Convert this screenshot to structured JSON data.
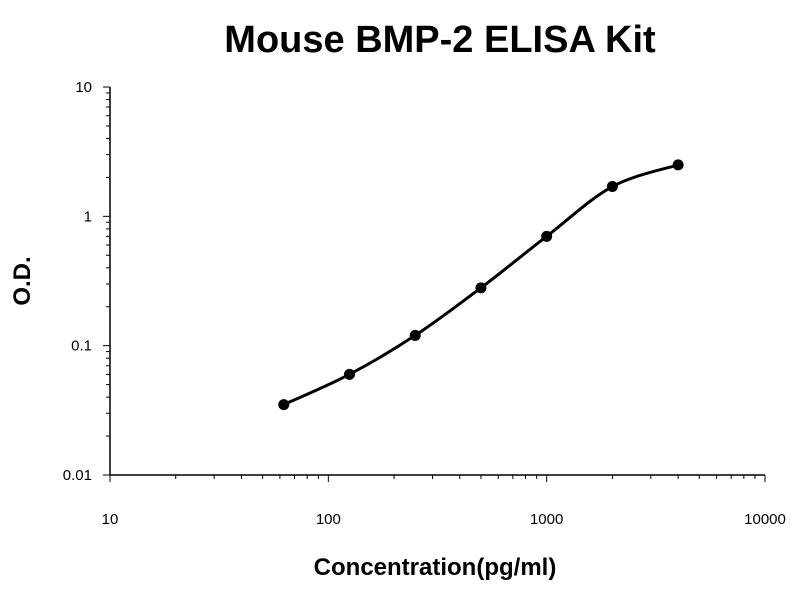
{
  "chart_data": {
    "type": "scatter",
    "title": "Mouse BMP-2 ELISA Kit",
    "xlabel": "Concentration(pg/ml)",
    "ylabel": "O.D.",
    "x_scale": "log",
    "y_scale": "log",
    "xlim": [
      10,
      10000
    ],
    "ylim": [
      0.01,
      10
    ],
    "x_ticks": [
      "10",
      "100",
      "1000",
      "10000"
    ],
    "y_ticks": [
      "10",
      "1",
      "0.1",
      "0.01"
    ],
    "grid": false,
    "legend": "none",
    "series": [
      {
        "points": [
          {
            "x": 62.5,
            "y": 0.035
          },
          {
            "x": 125,
            "y": 0.06
          },
          {
            "x": 250,
            "y": 0.12
          },
          {
            "x": 500,
            "y": 0.28
          },
          {
            "x": 1000,
            "y": 0.7
          },
          {
            "x": 2000,
            "y": 1.7
          },
          {
            "x": 4000,
            "y": 2.5
          }
        ],
        "fit_curve": true,
        "color": "#000000"
      }
    ]
  }
}
